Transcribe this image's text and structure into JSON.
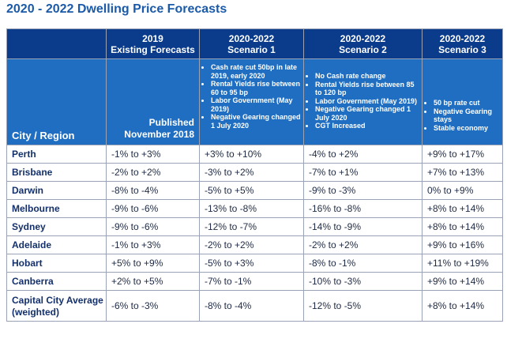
{
  "title": "2020 - 2022 Dwelling Price Forecasts",
  "header": {
    "col1": {
      "line1": "2019",
      "line2": "Existing Forecasts"
    },
    "col2": {
      "line1": "2020-2022",
      "line2": "Scenario 1"
    },
    "col3": {
      "line1": "2020-2022",
      "line2": "Scenario 2"
    },
    "col4": {
      "line1": "2020-2022",
      "line2": "Scenario 3"
    }
  },
  "subheader": {
    "city_label": "City / Region",
    "published_line1": "Published",
    "published_line2": "November 2018",
    "scenario1_notes": [
      "Cash rate cut 50bp in late 2019, early 2020",
      "Rental Yields rise between 60 to 95 bp",
      "Labor Government (May 2019)",
      "Negative Gearing changed 1 July 2020"
    ],
    "scenario2_notes": [
      "No Cash rate change",
      "Rental Yields rise between 85 to 120 bp",
      "Labor Government (May 2019)",
      "Negative Gearing changed 1 July 2020",
      "CGT Increased"
    ],
    "scenario3_notes": [
      "50 bp rate cut",
      "Negative Gearing stays",
      "Stable economy"
    ]
  },
  "rows": [
    {
      "city": "Perth",
      "existing": "-1% to +3%",
      "s1": "+3% to +10%",
      "s2": "-4% to +2%",
      "s3": "+9% to +17%"
    },
    {
      "city": "Brisbane",
      "existing": "-2% to +2%",
      "s1": "-3% to +2%",
      "s2": "-7% to +1%",
      "s3": "+7% to +13%"
    },
    {
      "city": "Darwin",
      "existing": "-8% to -4%",
      "s1": "-5% to +5%",
      "s2": "-9% to -3%",
      "s3": "0% to +9%"
    },
    {
      "city": "Melbourne",
      "existing": "-9% to -6%",
      "s1": "-13% to -8%",
      "s2": "-16% to -8%",
      "s3": "+8% to +14%"
    },
    {
      "city": "Sydney",
      "existing": "-9% to -6%",
      "s1": "-12% to -7%",
      "s2": "-14% to -9%",
      "s3": "+8% to +14%"
    },
    {
      "city": "Adelaide",
      "existing": "-1% to +3%",
      "s1": "-2% to +2%",
      "s2": "-2% to +2%",
      "s3": "+9% to +16%"
    },
    {
      "city": "Hobart",
      "existing": "+5% to +9%",
      "s1": "-5% to +3%",
      "s2": "-8% to -1%",
      "s3": "+11% to +19%"
    },
    {
      "city": "Canberra",
      "existing": "+2% to +5%",
      "s1": "-7% to -1%",
      "s2": "-10% to -3%",
      "s3": "+9% to +14%"
    }
  ],
  "average_row": {
    "city_line1": "Capital City Average",
    "city_line2": "(weighted)",
    "existing": "-6% to -3%",
    "s1": "-8% to -4%",
    "s2": "-12% to -5%",
    "s3": "+8% to +14%"
  },
  "colors": {
    "title": "#1a5aa8",
    "header_dark": "#0b3c8c",
    "header_light": "#1f6ec2",
    "city_text": "#13306b"
  }
}
